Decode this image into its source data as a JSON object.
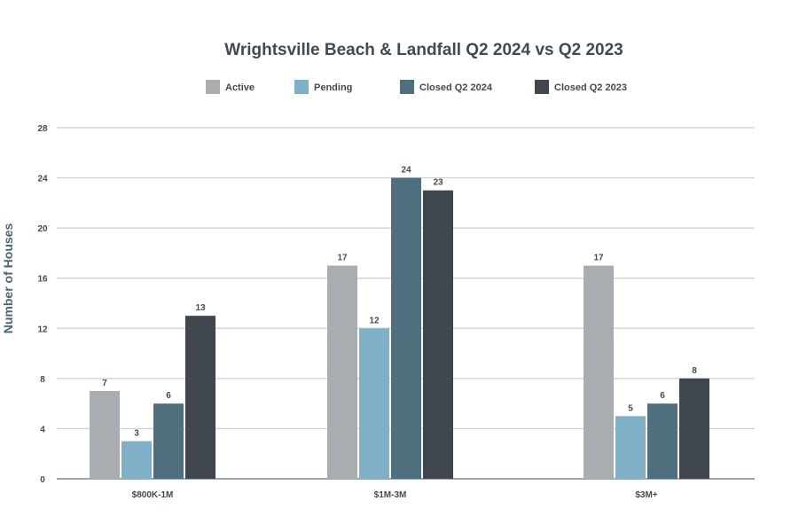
{
  "chart_data": {
    "type": "bar",
    "title": "Wrightsville Beach & Landfall Q2 2024 vs Q2 2023",
    "xlabel": "",
    "ylabel": "Number of Houses",
    "categories": [
      "$800K-1M",
      "$1M-3M",
      "$3M+"
    ],
    "series": [
      {
        "name": "Active",
        "color": "#a8adb2",
        "values": [
          7,
          17,
          17
        ]
      },
      {
        "name": "Pending",
        "color": "#7fb0c7",
        "values": [
          3,
          12,
          5
        ]
      },
      {
        "name": "Closed Q2 2024",
        "color": "#4f6f7f",
        "values": [
          6,
          24,
          6
        ]
      },
      {
        "name": "Closed Q2 2023",
        "color": "#3f464d",
        "values": [
          13,
          23,
          8
        ]
      }
    ],
    "yticks": [
      0,
      4,
      8,
      12,
      16,
      20,
      24,
      28
    ],
    "ylim": [
      0,
      28
    ],
    "grid": true,
    "legend_position": "top"
  }
}
